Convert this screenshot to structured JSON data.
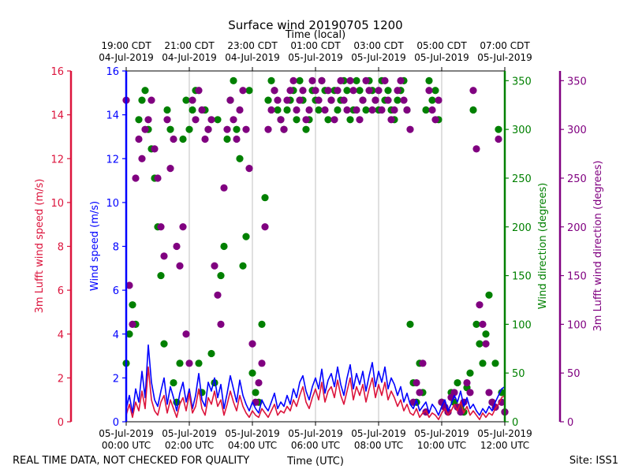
{
  "chart_data": {
    "type": "line",
    "title": "Surface wind 20190705 1200",
    "top_xlabel": "Time (local)",
    "xlabel": "Time (UTC)",
    "left_outer_ylabel": "3m Lufft wind speed (m/s)",
    "left_inner_ylabel": "Wind speed (m/s)",
    "right_inner_ylabel": "Wind direction (degrees)",
    "right_outer_ylabel": "3m Lufft wind direction (degrees)",
    "xlim_hours": [
      0,
      12
    ],
    "speed_ylim": [
      0,
      16
    ],
    "direction_ylim": [
      0,
      360
    ],
    "speed_ticks": [
      0,
      2,
      4,
      6,
      8,
      10,
      12,
      14,
      16
    ],
    "direction_ticks": [
      0,
      50,
      100,
      150,
      200,
      250,
      300,
      350
    ],
    "bottom_ticks": [
      {
        "h": 0,
        "date": "05-Jul-2019",
        "time": "00:00 UTC"
      },
      {
        "h": 2,
        "date": "05-Jul-2019",
        "time": "02:00 UTC"
      },
      {
        "h": 4,
        "date": "05-Jul-2019",
        "time": "04:00 UTC"
      },
      {
        "h": 6,
        "date": "05-Jul-2019",
        "time": "06:00 UTC"
      },
      {
        "h": 8,
        "date": "05-Jul-2019",
        "time": "08:00 UTC"
      },
      {
        "h": 10,
        "date": "05-Jul-2019",
        "time": "10:00 UTC"
      },
      {
        "h": 12,
        "date": "05-Jul-2019",
        "time": "12:00 UTC"
      }
    ],
    "top_ticks": [
      {
        "h": 0,
        "time": "19:00 CDT",
        "date": "04-Jul-2019"
      },
      {
        "h": 2,
        "time": "21:00 CDT",
        "date": "04-Jul-2019"
      },
      {
        "h": 4,
        "time": "23:00 CDT",
        "date": "04-Jul-2019"
      },
      {
        "h": 6,
        "time": "01:00 CDT",
        "date": "05-Jul-2019"
      },
      {
        "h": 8,
        "time": "03:00 CDT",
        "date": "05-Jul-2019"
      },
      {
        "h": 10,
        "time": "05:00 CDT",
        "date": "05-Jul-2019"
      },
      {
        "h": 12,
        "time": "07:00 CDT",
        "date": "05-Jul-2019"
      }
    ],
    "series": [
      {
        "name": "Wind speed",
        "color": "#0000ff",
        "axis": "speed",
        "x": [
          0.0,
          0.1,
          0.2,
          0.3,
          0.4,
          0.5,
          0.6,
          0.7,
          0.8,
          0.9,
          1.0,
          1.1,
          1.2,
          1.3,
          1.4,
          1.5,
          1.6,
          1.7,
          1.8,
          1.9,
          2.0,
          2.1,
          2.2,
          2.3,
          2.4,
          2.5,
          2.6,
          2.7,
          2.8,
          2.9,
          3.0,
          3.1,
          3.2,
          3.3,
          3.4,
          3.5,
          3.6,
          3.7,
          3.8,
          3.9,
          4.0,
          4.1,
          4.2,
          4.3,
          4.4,
          4.5,
          4.6,
          4.7,
          4.8,
          4.9,
          5.0,
          5.1,
          5.2,
          5.3,
          5.4,
          5.5,
          5.6,
          5.7,
          5.8,
          5.9,
          6.0,
          6.1,
          6.2,
          6.3,
          6.4,
          6.5,
          6.6,
          6.7,
          6.8,
          6.9,
          7.0,
          7.1,
          7.2,
          7.3,
          7.4,
          7.5,
          7.6,
          7.7,
          7.8,
          7.9,
          8.0,
          8.1,
          8.2,
          8.3,
          8.4,
          8.5,
          8.6,
          8.7,
          8.8,
          8.9,
          9.0,
          9.1,
          9.2,
          9.3,
          9.4,
          9.5,
          9.6,
          9.7,
          9.8,
          9.9,
          10.0,
          10.1,
          10.2,
          10.3,
          10.4,
          10.5,
          10.6,
          10.7,
          10.8,
          10.9,
          11.0,
          11.1,
          11.2,
          11.3,
          11.4,
          11.5,
          11.6,
          11.7,
          11.8,
          11.9,
          12.0
        ],
        "y": [
          0.6,
          1.2,
          0.4,
          1.5,
          0.9,
          2.3,
          1.1,
          3.5,
          1.8,
          1.0,
          0.7,
          1.4,
          2.0,
          0.8,
          1.6,
          1.1,
          0.5,
          1.3,
          1.8,
          0.9,
          1.5,
          0.6,
          1.2,
          2.2,
          1.0,
          0.7,
          1.8,
          1.4,
          2.0,
          1.1,
          1.7,
          0.6,
          1.3,
          2.1,
          1.5,
          0.9,
          1.9,
          1.2,
          0.8,
          0.5,
          0.9,
          0.6,
          0.4,
          1.0,
          0.7,
          0.5,
          0.9,
          1.3,
          0.6,
          0.9,
          0.7,
          1.2,
          0.8,
          1.5,
          1.1,
          1.8,
          2.1,
          1.4,
          1.0,
          1.6,
          2.0,
          1.5,
          2.4,
          1.3,
          1.9,
          2.2,
          1.6,
          2.5,
          1.7,
          1.2,
          2.0,
          2.6,
          1.5,
          2.2,
          1.7,
          2.3,
          1.4,
          2.1,
          2.7,
          1.6,
          2.3,
          1.8,
          2.5,
          1.5,
          2.0,
          1.7,
          1.2,
          1.6,
          0.9,
          1.3,
          0.8,
          0.6,
          1.0,
          0.5,
          0.7,
          0.9,
          0.4,
          0.8,
          0.6,
          0.3,
          0.7,
          1.0,
          0.5,
          0.8,
          1.2,
          0.9,
          1.4,
          0.7,
          1.1,
          0.6,
          0.8,
          0.5,
          0.3,
          0.6,
          0.4,
          0.7,
          0.5,
          0.9,
          1.2,
          1.5,
          1.6
        ]
      },
      {
        "name": "3m Lufft wind speed",
        "color": "#dc143c",
        "axis": "speed",
        "x": [
          0.0,
          0.1,
          0.2,
          0.3,
          0.4,
          0.5,
          0.6,
          0.7,
          0.8,
          0.9,
          1.0,
          1.1,
          1.2,
          1.3,
          1.4,
          1.5,
          1.6,
          1.7,
          1.8,
          1.9,
          2.0,
          2.1,
          2.2,
          2.3,
          2.4,
          2.5,
          2.6,
          2.7,
          2.8,
          2.9,
          3.0,
          3.1,
          3.2,
          3.3,
          3.4,
          3.5,
          3.6,
          3.7,
          3.8,
          3.9,
          4.0,
          4.1,
          4.2,
          4.3,
          4.4,
          4.5,
          4.6,
          4.7,
          4.8,
          4.9,
          5.0,
          5.1,
          5.2,
          5.3,
          5.4,
          5.5,
          5.6,
          5.7,
          5.8,
          5.9,
          6.0,
          6.1,
          6.2,
          6.3,
          6.4,
          6.5,
          6.6,
          6.7,
          6.8,
          6.9,
          7.0,
          7.1,
          7.2,
          7.3,
          7.4,
          7.5,
          7.6,
          7.7,
          7.8,
          7.9,
          8.0,
          8.1,
          8.2,
          8.3,
          8.4,
          8.5,
          8.6,
          8.7,
          8.8,
          8.9,
          9.0,
          9.1,
          9.2,
          9.3,
          9.4,
          9.5,
          9.6,
          9.7,
          9.8,
          9.9,
          10.0,
          10.1,
          10.2,
          10.3,
          10.4,
          10.5,
          10.6,
          10.7,
          10.8,
          10.9,
          11.0,
          11.1,
          11.2,
          11.3,
          11.4,
          11.5,
          11.6,
          11.7,
          11.8,
          11.9,
          12.0
        ],
        "y": [
          0.3,
          0.8,
          0.2,
          0.9,
          0.5,
          1.4,
          0.6,
          2.5,
          1.0,
          0.5,
          0.3,
          0.9,
          1.2,
          0.4,
          1.0,
          0.6,
          0.2,
          0.8,
          1.1,
          0.5,
          1.3,
          0.4,
          0.7,
          1.5,
          0.6,
          0.3,
          1.1,
          0.8,
          1.4,
          0.7,
          1.0,
          0.3,
          0.8,
          1.4,
          0.9,
          0.5,
          1.2,
          0.7,
          0.4,
          0.2,
          0.5,
          0.3,
          0.2,
          0.6,
          0.4,
          0.2,
          0.5,
          0.8,
          0.3,
          0.5,
          0.4,
          0.7,
          0.5,
          1.0,
          0.7,
          1.2,
          1.6,
          0.9,
          0.6,
          1.1,
          1.5,
          1.0,
          1.8,
          0.9,
          1.4,
          1.6,
          1.1,
          1.9,
          1.2,
          0.8,
          1.4,
          2.0,
          1.0,
          1.6,
          1.2,
          1.7,
          0.9,
          1.5,
          2.0,
          1.1,
          1.7,
          1.2,
          1.8,
          1.0,
          1.4,
          1.1,
          0.7,
          1.0,
          0.5,
          0.8,
          0.4,
          0.3,
          0.6,
          0.2,
          0.4,
          0.5,
          0.2,
          0.4,
          0.3,
          0.1,
          0.4,
          0.6,
          0.3,
          0.5,
          0.8,
          0.5,
          0.9,
          0.4,
          0.7,
          0.3,
          0.5,
          0.3,
          0.1,
          0.4,
          0.2,
          0.4,
          0.3,
          0.6,
          0.8,
          1.1,
          1.2
        ]
      },
      {
        "name": "Wind direction",
        "color": "#008000",
        "axis": "direction",
        "marker": "circle",
        "x": [
          0.0,
          0.1,
          0.2,
          0.3,
          0.4,
          0.5,
          0.6,
          0.7,
          0.8,
          0.9,
          1.0,
          1.1,
          1.2,
          1.3,
          1.4,
          1.5,
          1.6,
          1.7,
          1.8,
          1.9,
          2.0,
          2.1,
          2.2,
          2.3,
          2.4,
          2.5,
          2.6,
          2.7,
          2.8,
          2.9,
          3.0,
          3.1,
          3.2,
          3.3,
          3.4,
          3.5,
          3.6,
          3.7,
          3.8,
          3.9,
          4.0,
          4.1,
          4.2,
          4.3,
          4.4,
          4.5,
          4.6,
          4.7,
          4.8,
          4.9,
          5.0,
          5.1,
          5.2,
          5.3,
          5.4,
          5.5,
          5.6,
          5.7,
          5.8,
          5.9,
          6.0,
          6.1,
          6.2,
          6.3,
          6.4,
          6.5,
          6.6,
          6.7,
          6.8,
          6.9,
          7.0,
          7.1,
          7.2,
          7.3,
          7.4,
          7.5,
          7.6,
          7.7,
          7.8,
          7.9,
          8.0,
          8.1,
          8.2,
          8.3,
          8.4,
          8.5,
          8.6,
          8.7,
          8.8,
          8.9,
          9.0,
          9.1,
          9.2,
          9.3,
          9.4,
          9.5,
          9.6,
          9.7,
          9.8,
          9.9,
          10.0,
          10.1,
          10.2,
          10.3,
          10.4,
          10.5,
          10.6,
          10.7,
          10.8,
          10.9,
          11.0,
          11.1,
          11.2,
          11.3,
          11.4,
          11.5,
          11.6,
          11.7,
          11.8,
          11.9,
          12.0
        ],
        "y": [
          60,
          90,
          120,
          100,
          310,
          330,
          340,
          300,
          280,
          250,
          200,
          150,
          80,
          320,
          300,
          40,
          20,
          60,
          290,
          330,
          300,
          320,
          340,
          60,
          30,
          320,
          300,
          70,
          40,
          310,
          150,
          180,
          290,
          330,
          350,
          300,
          270,
          160,
          190,
          340,
          50,
          30,
          20,
          100,
          230,
          330,
          350,
          340,
          320,
          310,
          300,
          320,
          330,
          340,
          310,
          350,
          330,
          300,
          310,
          340,
          330,
          320,
          350,
          340,
          310,
          330,
          340,
          320,
          330,
          350,
          340,
          310,
          320,
          350,
          340,
          330,
          320,
          350,
          340,
          330,
          320,
          350,
          330,
          340,
          320,
          310,
          330,
          340,
          350,
          320,
          100,
          40,
          20,
          60,
          30,
          320,
          350,
          330,
          340,
          310,
          20,
          15,
          10,
          30,
          20,
          40,
          15,
          10,
          35,
          50,
          320,
          100,
          80,
          60,
          90,
          130,
          20,
          60,
          300,
          30,
          10
        ]
      },
      {
        "name": "3m Lufft wind direction",
        "color": "#800080",
        "axis": "direction",
        "marker": "circle",
        "x": [
          0.0,
          0.1,
          0.2,
          0.3,
          0.4,
          0.5,
          0.6,
          0.7,
          0.8,
          0.9,
          1.0,
          1.1,
          1.2,
          1.3,
          1.4,
          1.5,
          1.6,
          1.7,
          1.8,
          1.9,
          2.0,
          2.1,
          2.2,
          2.3,
          2.4,
          2.5,
          2.6,
          2.7,
          2.8,
          2.9,
          3.0,
          3.1,
          3.2,
          3.3,
          3.4,
          3.5,
          3.6,
          3.7,
          3.8,
          3.9,
          4.0,
          4.1,
          4.2,
          4.3,
          4.4,
          4.5,
          4.6,
          4.7,
          4.8,
          4.9,
          5.0,
          5.1,
          5.2,
          5.3,
          5.4,
          5.5,
          5.6,
          5.7,
          5.8,
          5.9,
          6.0,
          6.1,
          6.2,
          6.3,
          6.4,
          6.5,
          6.6,
          6.7,
          6.8,
          6.9,
          7.0,
          7.1,
          7.2,
          7.3,
          7.4,
          7.5,
          7.6,
          7.7,
          7.8,
          7.9,
          8.0,
          8.1,
          8.2,
          8.3,
          8.4,
          8.5,
          8.6,
          8.7,
          8.8,
          8.9,
          9.0,
          9.1,
          9.2,
          9.3,
          9.4,
          9.5,
          9.6,
          9.7,
          9.8,
          9.9,
          10.0,
          10.1,
          10.2,
          10.3,
          10.4,
          10.5,
          10.6,
          10.7,
          10.8,
          10.9,
          11.0,
          11.1,
          11.2,
          11.3,
          11.4,
          11.5,
          11.6,
          11.7,
          11.8,
          11.9,
          12.0
        ],
        "y": [
          330,
          140,
          100,
          250,
          290,
          270,
          300,
          310,
          330,
          280,
          250,
          200,
          170,
          310,
          260,
          290,
          180,
          160,
          200,
          90,
          60,
          330,
          310,
          340,
          320,
          290,
          300,
          310,
          160,
          130,
          100,
          240,
          300,
          330,
          310,
          290,
          320,
          340,
          300,
          260,
          80,
          20,
          40,
          60,
          200,
          300,
          320,
          340,
          330,
          310,
          300,
          330,
          340,
          350,
          320,
          330,
          340,
          310,
          320,
          350,
          340,
          330,
          350,
          320,
          340,
          330,
          310,
          340,
          350,
          330,
          320,
          350,
          340,
          320,
          310,
          330,
          350,
          340,
          320,
          330,
          340,
          320,
          350,
          330,
          310,
          320,
          340,
          350,
          330,
          320,
          300,
          20,
          40,
          30,
          60,
          10,
          340,
          320,
          310,
          330,
          20,
          15,
          10,
          25,
          30,
          15,
          10,
          20,
          40,
          30,
          340,
          280,
          120,
          100,
          80,
          30,
          20,
          15,
          290,
          20,
          10
        ]
      }
    ]
  },
  "footer": {
    "left_note": "REAL TIME DATA, NOT CHECKED FOR QUALITY",
    "site": "Site: ISS1"
  },
  "colors": {
    "speed_outer": "#dc143c",
    "speed_inner": "#0000ff",
    "dir_inner": "#008000",
    "dir_outer": "#800080"
  }
}
